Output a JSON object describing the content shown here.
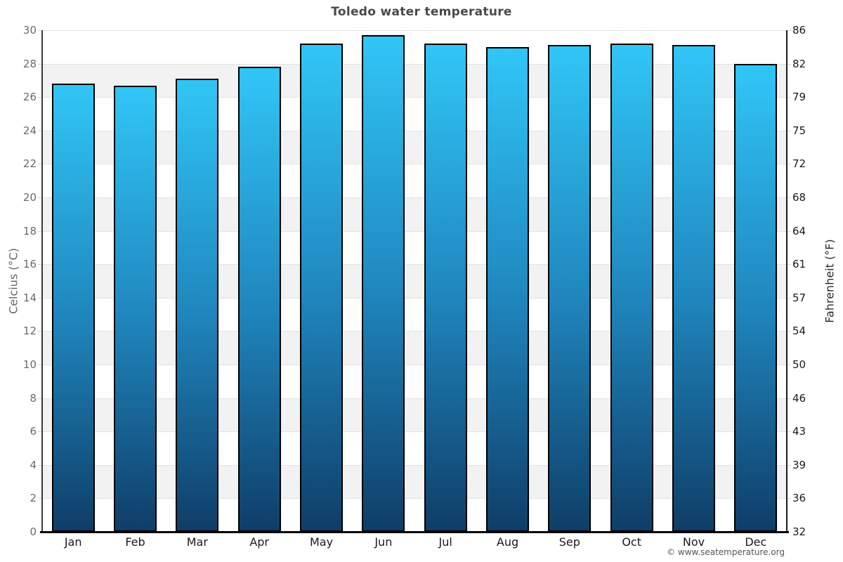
{
  "title": "Toledo water temperature",
  "footer": {
    "copyright": "© www.seatemperature.org"
  },
  "chart_data": {
    "type": "bar",
    "title": "Toledo water temperature",
    "categories": [
      "Jan",
      "Feb",
      "Mar",
      "Apr",
      "May",
      "Jun",
      "Jul",
      "Aug",
      "Sep",
      "Oct",
      "Nov",
      "Dec"
    ],
    "values_celsius": [
      26.8,
      26.7,
      27.1,
      27.8,
      29.2,
      29.7,
      29.2,
      29.0,
      29.1,
      29.2,
      29.1,
      28.0
    ],
    "xlabel": "",
    "ylabel_left": "Celcius (°C)",
    "ylabel_right": "Fahrenheit (°F)",
    "ylim": [
      0,
      30
    ],
    "ytick_step": 2,
    "yticks_left": [
      "0",
      "2",
      "4",
      "6",
      "8",
      "10",
      "12",
      "14",
      "16",
      "18",
      "20",
      "22",
      "24",
      "26",
      "28",
      "30"
    ],
    "yticks_right": [
      "32",
      "36",
      "39",
      "43",
      "46",
      "50",
      "54",
      "57",
      "61",
      "64",
      "68",
      "72",
      "75",
      "79",
      "82",
      "86"
    ],
    "legend": "none",
    "grid": "alternating horizontal gray bands with light gridlines every 2°C",
    "colors": {
      "bar_gradient_top": "#31c6f6",
      "bar_gradient_mid": "#1f86bd",
      "bar_gradient_bottom": "#0f3e68",
      "bar_border": "#000000",
      "band_fill": "#f2f2f2",
      "gridline": "#e2e2e2",
      "baseline": "#000000",
      "title_text": "#4a4a4a",
      "left_tick_text": "#6b6b6b",
      "right_tick_text": "#1a1a1a",
      "month_text": "#1a1a1a",
      "copyright_text": "#555555"
    }
  }
}
